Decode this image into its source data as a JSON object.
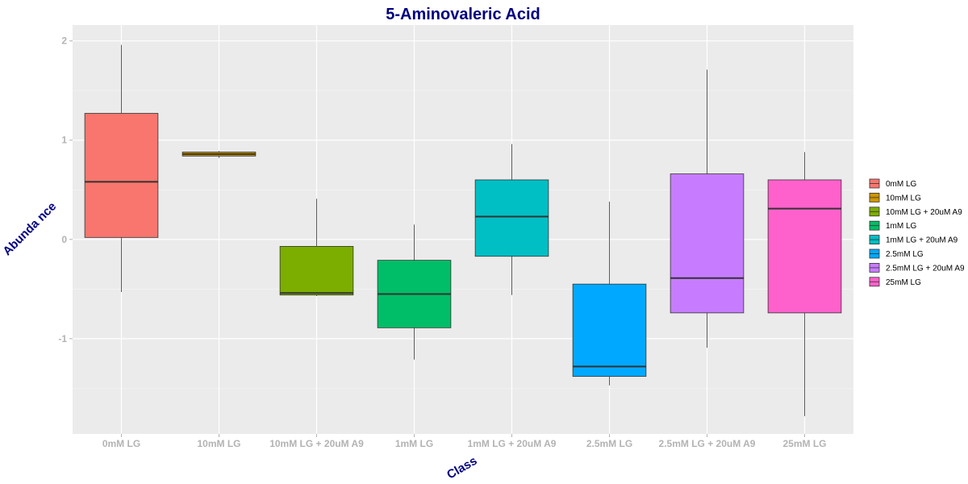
{
  "chart_data": {
    "type": "box",
    "title": "5-Aminovaleric Acid",
    "xlabel": "Class",
    "ylabel": "Abunda nce",
    "ylim": [
      -1.96,
      2.16
    ],
    "yticks": [
      2,
      1,
      0,
      -1
    ],
    "ytick_labels": [
      "2",
      "1",
      "0",
      "-1"
    ],
    "grid": true,
    "legend_position": "right",
    "categories": [
      "0mM LG",
      "10mM LG",
      "10mM LG + 20uM A9",
      "1mM LG",
      "1mM LG + 20uM A9",
      "2.5mM LG",
      "2.5mM LG + 20uM A9",
      "25mM LG"
    ],
    "series": [
      {
        "name": "0mM LG",
        "color": "#F8766D",
        "whisker_low": -0.53,
        "q1": 0.02,
        "median": 0.58,
        "q3": 1.27,
        "whisker_high": 1.96
      },
      {
        "name": "10mM LG",
        "color": "#CD9600",
        "whisker_low": 0.82,
        "q1": 0.84,
        "median": 0.86,
        "q3": 0.88,
        "whisker_high": 0.89
      },
      {
        "name": "10mM LG + 20uM A9",
        "color": "#7CAE00",
        "whisker_low": -0.57,
        "q1": -0.56,
        "median": -0.54,
        "q3": -0.07,
        "whisker_high": 0.41
      },
      {
        "name": "1mM LG",
        "color": "#00BE67",
        "whisker_low": -1.21,
        "q1": -0.89,
        "median": -0.55,
        "q3": -0.21,
        "whisker_high": 0.15
      },
      {
        "name": "1mM LG + 20uM A9",
        "color": "#00BFC4",
        "whisker_low": -0.56,
        "q1": -0.17,
        "median": 0.23,
        "q3": 0.6,
        "whisker_high": 0.96
      },
      {
        "name": "2.5mM LG",
        "color": "#00A9FF",
        "whisker_low": -1.47,
        "q1": -1.38,
        "median": -1.28,
        "q3": -0.45,
        "whisker_high": 0.38
      },
      {
        "name": "2.5mM LG + 20uM A9",
        "color": "#C77CFF",
        "whisker_low": -1.09,
        "q1": -0.74,
        "median": -0.39,
        "q3": 0.66,
        "whisker_high": 1.71
      },
      {
        "name": "25mM LG",
        "color": "#FF61CC",
        "whisker_low": -1.78,
        "q1": -0.74,
        "median": 0.31,
        "q3": 0.6,
        "whisker_high": 0.88
      }
    ]
  }
}
